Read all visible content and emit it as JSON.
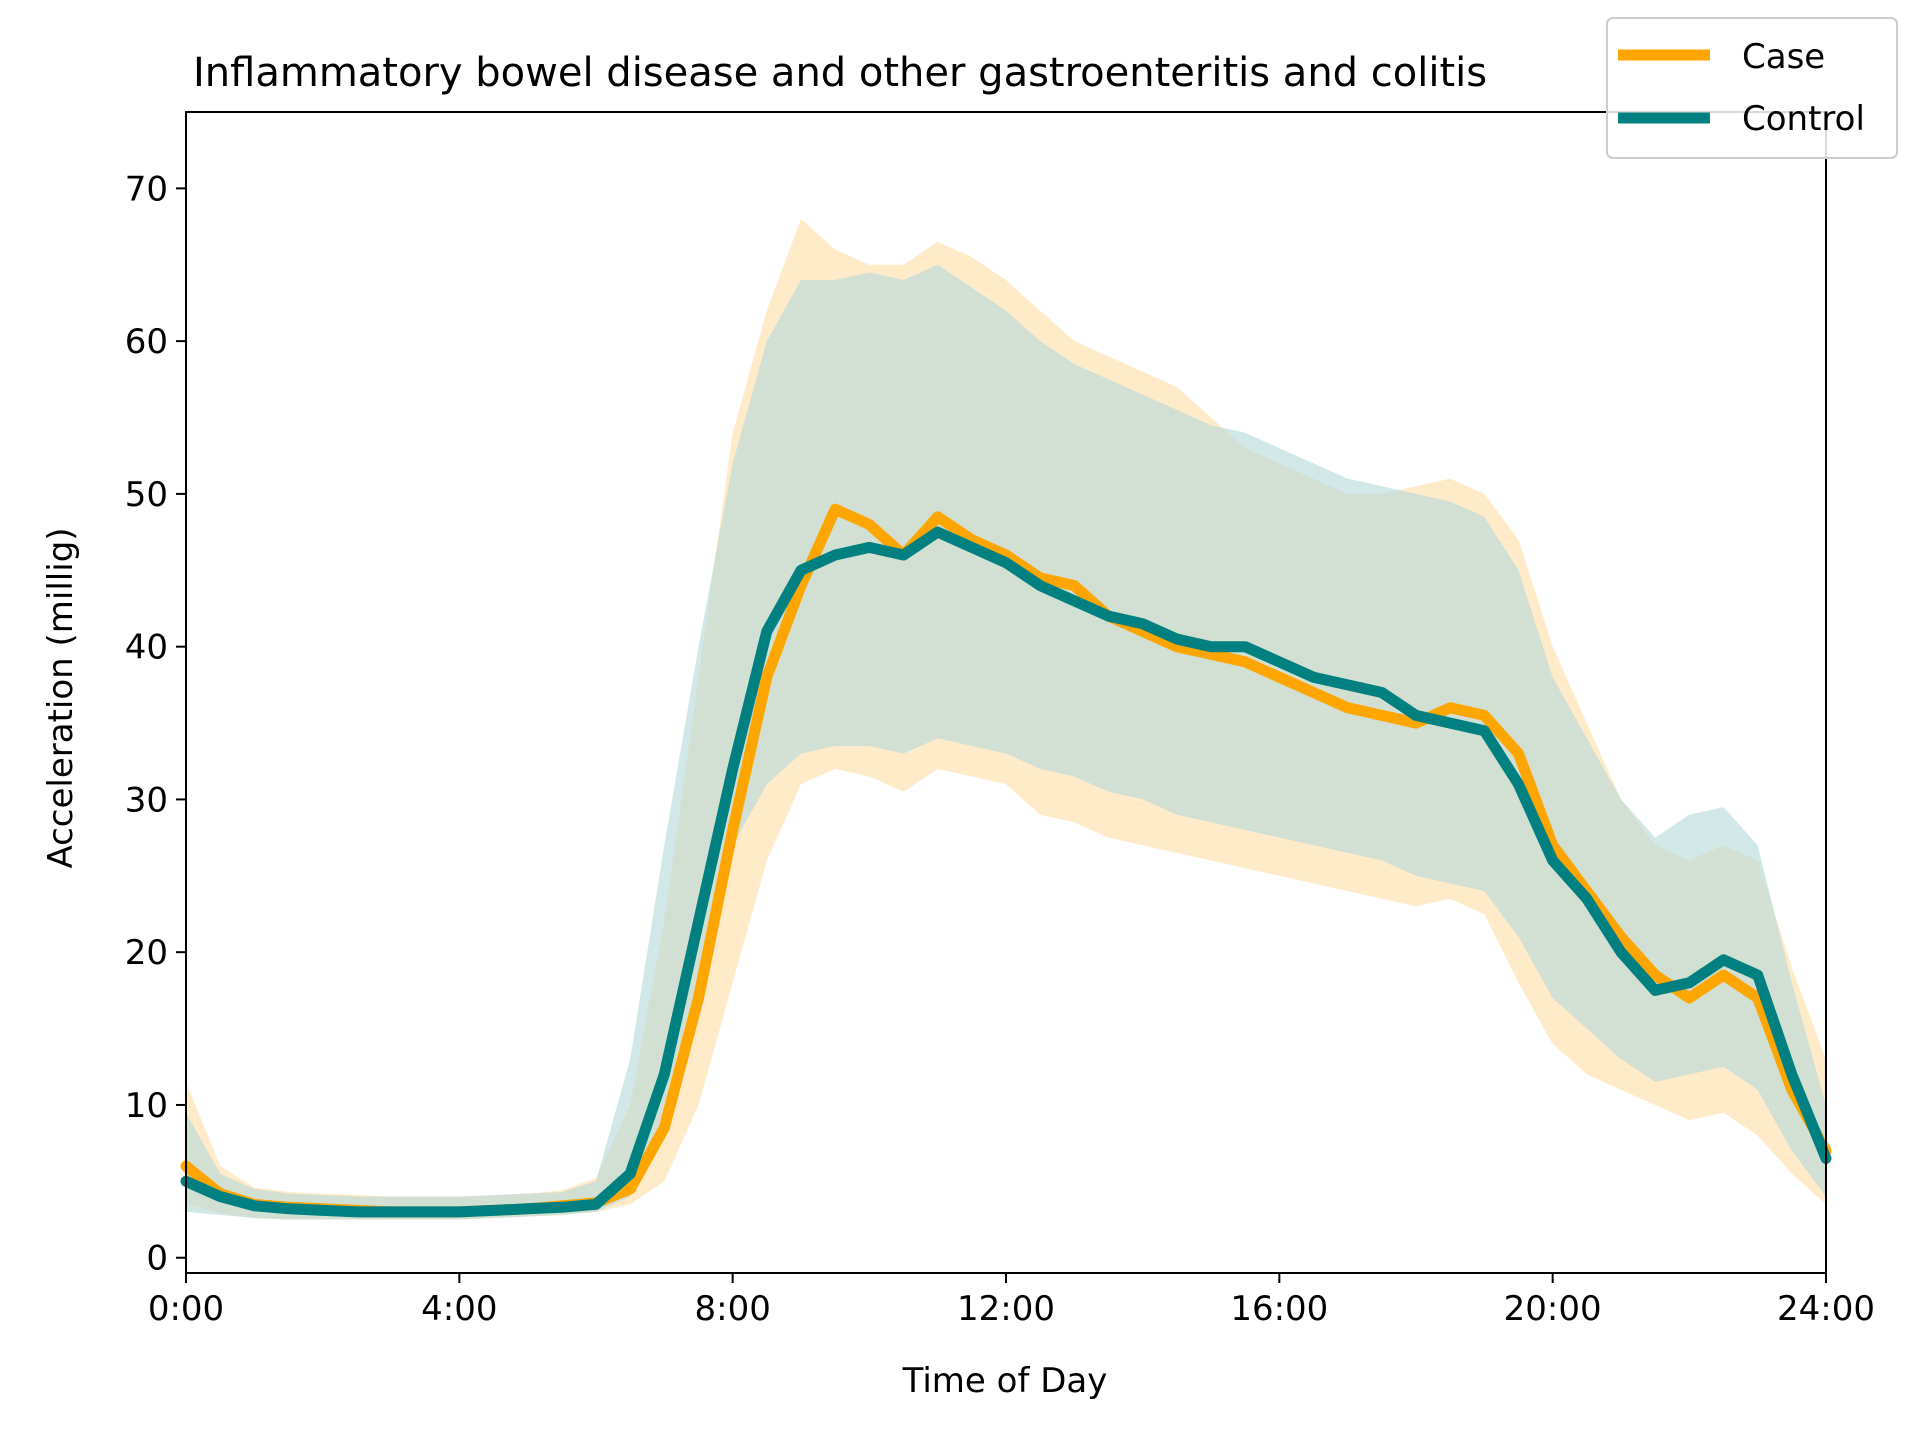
{
  "chart_data": {
    "type": "line",
    "title": "Inflammatory bowel disease and other gastroenteritis and colitis",
    "xlabel": "Time of Day",
    "ylabel": "Acceleration (millig)",
    "xlim": [
      0,
      24
    ],
    "ylim": [
      -1,
      75
    ],
    "x_ticks": [
      0,
      4,
      8,
      12,
      16,
      20,
      24
    ],
    "x_tick_labels": [
      "0:00",
      "4:00",
      "8:00",
      "12:00",
      "16:00",
      "20:00",
      "24:00"
    ],
    "y_ticks": [
      0,
      10,
      20,
      30,
      40,
      50,
      60,
      70
    ],
    "y_tick_labels": [
      "0",
      "10",
      "20",
      "30",
      "40",
      "50",
      "60",
      "70"
    ],
    "grid": false,
    "legend_position": "top-right",
    "band": "shaded range around each series",
    "x": [
      0,
      0.5,
      1,
      1.5,
      2,
      2.5,
      3,
      3.5,
      4,
      4.5,
      5,
      5.5,
      6,
      6.5,
      7,
      7.5,
      8,
      8.5,
      9,
      9.5,
      10,
      10.5,
      11,
      11.5,
      12,
      12.5,
      13,
      13.5,
      14,
      14.5,
      15,
      15.5,
      16,
      16.5,
      17,
      17.5,
      18,
      18.5,
      19,
      19.5,
      20,
      20.5,
      21,
      21.5,
      22,
      22.5,
      23,
      23.5,
      24
    ],
    "series": [
      {
        "name": "Case",
        "color": "#FFA500",
        "band_color": "#FFE4B5",
        "values": [
          6.0,
          4.2,
          3.5,
          3.3,
          3.2,
          3.1,
          3.0,
          3.0,
          3.0,
          3.1,
          3.2,
          3.4,
          3.6,
          4.5,
          8.5,
          17.0,
          28.0,
          38.0,
          44.0,
          49.0,
          48.0,
          46.0,
          48.5,
          47.0,
          46.0,
          44.5,
          44.0,
          42.0,
          41.0,
          40.0,
          39.5,
          39.0,
          38.0,
          37.0,
          36.0,
          35.5,
          35.0,
          36.0,
          35.5,
          33.0,
          27.0,
          24.0,
          21.0,
          18.5,
          17.0,
          18.5,
          17.0,
          11.0,
          7.0
        ],
        "lower": [
          3.5,
          2.9,
          2.6,
          2.5,
          2.5,
          2.5,
          2.5,
          2.5,
          2.5,
          2.6,
          2.7,
          2.8,
          3.0,
          3.5,
          5.0,
          10.0,
          18.0,
          26.0,
          31.0,
          32.0,
          31.5,
          30.5,
          32.0,
          31.5,
          31.0,
          29.0,
          28.5,
          27.5,
          27.0,
          26.5,
          26.0,
          25.5,
          25.0,
          24.5,
          24.0,
          23.5,
          23.0,
          23.5,
          22.5,
          18.0,
          14.0,
          12.0,
          11.0,
          10.0,
          9.0,
          9.5,
          8.0,
          5.5,
          3.5
        ],
        "upper": [
          11.5,
          6.0,
          4.6,
          4.3,
          4.2,
          4.1,
          4.0,
          4.0,
          4.0,
          4.1,
          4.2,
          4.4,
          5.2,
          10.0,
          22.0,
          38.0,
          54.0,
          62.0,
          68.0,
          66.0,
          65.0,
          65.0,
          66.5,
          65.5,
          64.0,
          62.0,
          60.0,
          59.0,
          58.0,
          57.0,
          55.0,
          53.0,
          52.0,
          51.0,
          50.0,
          50.0,
          50.5,
          51.0,
          50.0,
          47.0,
          40.0,
          35.0,
          30.0,
          27.0,
          26.0,
          27.0,
          26.0,
          19.0,
          13.0
        ]
      },
      {
        "name": "Control",
        "color": "#008080",
        "band_color": "#B2D8D8",
        "values": [
          5.0,
          4.0,
          3.4,
          3.2,
          3.1,
          3.0,
          3.0,
          3.0,
          3.0,
          3.1,
          3.2,
          3.3,
          3.5,
          5.5,
          12.0,
          22.0,
          32.0,
          41.0,
          45.0,
          46.0,
          46.5,
          46.0,
          47.5,
          46.5,
          45.5,
          44.0,
          43.0,
          42.0,
          41.5,
          40.5,
          40.0,
          40.0,
          39.0,
          38.0,
          37.5,
          37.0,
          35.5,
          35.0,
          34.5,
          31.0,
          26.0,
          23.5,
          20.0,
          17.5,
          18.0,
          19.5,
          18.5,
          12.0,
          6.5
        ],
        "lower": [
          3.0,
          2.8,
          2.6,
          2.5,
          2.5,
          2.5,
          2.5,
          2.5,
          2.5,
          2.6,
          2.7,
          2.8,
          3.0,
          4.0,
          9.0,
          18.0,
          27.0,
          31.0,
          33.0,
          33.5,
          33.5,
          33.0,
          34.0,
          33.5,
          33.0,
          32.0,
          31.5,
          30.5,
          30.0,
          29.0,
          28.5,
          28.0,
          27.5,
          27.0,
          26.5,
          26.0,
          25.0,
          24.5,
          24.0,
          21.0,
          17.0,
          15.0,
          13.0,
          11.5,
          12.0,
          12.5,
          11.0,
          7.0,
          4.0
        ],
        "upper": [
          9.5,
          5.5,
          4.5,
          4.2,
          4.1,
          4.0,
          4.0,
          4.0,
          4.0,
          4.1,
          4.2,
          4.3,
          5.0,
          13.0,
          27.0,
          40.0,
          52.0,
          60.0,
          64.0,
          64.0,
          64.5,
          64.0,
          65.0,
          63.5,
          62.0,
          60.0,
          58.5,
          57.5,
          56.5,
          55.5,
          54.5,
          54.0,
          53.0,
          52.0,
          51.0,
          50.5,
          50.0,
          49.5,
          48.5,
          45.0,
          38.0,
          34.0,
          30.0,
          27.5,
          29.0,
          29.5,
          27.0,
          18.0,
          10.0
        ]
      }
    ]
  }
}
